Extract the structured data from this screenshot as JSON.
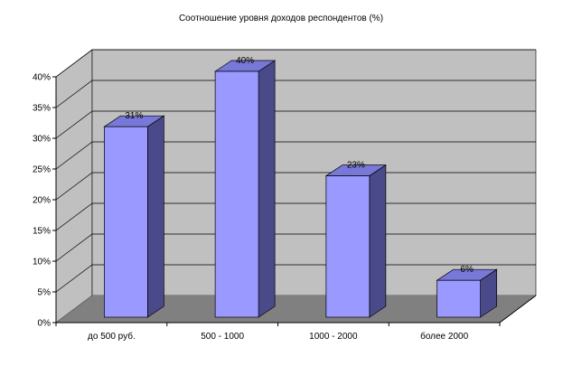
{
  "chart_data": {
    "type": "bar",
    "title": "Соотношение уровня доходов респондентов (%)",
    "categories": [
      "до 500 руб.",
      "500 - 1000",
      "1000 - 2000",
      "более 2000"
    ],
    "values": [
      31,
      40,
      23,
      6
    ],
    "value_labels": [
      "31%",
      "40%",
      "23%",
      "6%"
    ],
    "y_ticks": [
      0,
      5,
      10,
      15,
      20,
      25,
      30,
      35,
      40
    ],
    "y_tick_labels": [
      "0%",
      "5%",
      "10%",
      "15%",
      "20%",
      "25%",
      "30%",
      "35%",
      "40%"
    ],
    "ylim": [
      0,
      40
    ],
    "grid": true,
    "legend": "none",
    "style": "3d-column",
    "colors": {
      "bar_front": "#9999ff",
      "bar_side": "#4a4a8a",
      "bar_top": "#7878d8",
      "wall": "#c0c0c0",
      "floor": "#808080",
      "grid": "#000000"
    }
  }
}
